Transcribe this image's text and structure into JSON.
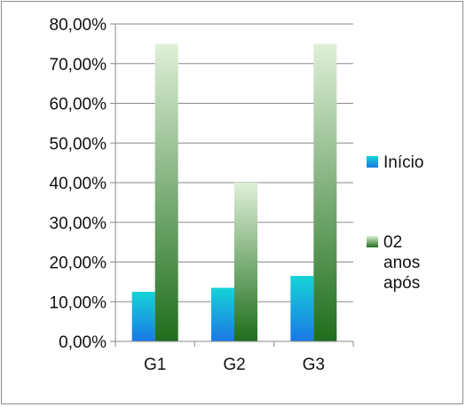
{
  "chart_data": {
    "type": "bar",
    "categories": [
      "G1",
      "G2",
      "G3"
    ],
    "series": [
      {
        "name": "Início",
        "values": [
          12.5,
          13.5,
          16.5
        ],
        "gradient": [
          "#15d3d6",
          "#1a78e6"
        ]
      },
      {
        "name_lines": [
          "02",
          "anos",
          "após"
        ],
        "values": [
          75,
          40,
          75
        ],
        "gradient": [
          "#dff0d8",
          "#1e6e1c"
        ]
      }
    ],
    "ylim": [
      0,
      80
    ],
    "yticks": [
      0,
      10,
      20,
      30,
      40,
      50,
      60,
      70,
      80
    ],
    "ytick_labels": [
      "0,00%",
      "10,00%",
      "20,00%",
      "30,00%",
      "40,00%",
      "50,00%",
      "60,00%",
      "70,00%",
      "80,00%"
    ],
    "grid": true,
    "legend_position": "right"
  }
}
